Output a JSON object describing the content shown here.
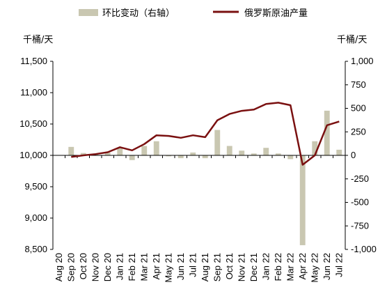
{
  "chart_data": {
    "type": "bar+line",
    "legend": {
      "bar_label": "环比变动（右轴）",
      "line_label": "俄罗斯原油产量",
      "position": "top"
    },
    "y_left": {
      "unit": "千桶/天",
      "range": [
        8500,
        11500
      ],
      "ticks": [
        8500,
        9000,
        9500,
        10000,
        10500,
        11000,
        11500
      ],
      "tick_labels": [
        "8,500",
        "9,000",
        "9,500",
        "10,000",
        "10,500",
        "11,000",
        "11,500"
      ]
    },
    "y_right": {
      "unit": "千桶/天",
      "range": [
        -1000,
        1000
      ],
      "ticks": [
        -1000,
        -750,
        -500,
        -250,
        0,
        250,
        500,
        750,
        1000
      ],
      "tick_labels": [
        "-1,000",
        "-750",
        "-500",
        "-250",
        "0",
        "250",
        "500",
        "750",
        "1,000"
      ]
    },
    "categories": [
      "Aug 20",
      "Sep 20",
      "Oct 20",
      "Nov 20",
      "Dec 20",
      "Jan 21",
      "Feb 21",
      "Mar 21",
      "Apr 21",
      "May 21",
      "Jun 21",
      "Jul 21",
      "Aug 21",
      "Sep 21",
      "Oct 21",
      "Nov 21",
      "Dec 21",
      "Jan 22",
      "Feb 22",
      "Mar 22",
      "Apr 22",
      "May 22",
      "Jun 22",
      "Jul 22"
    ],
    "series": [
      {
        "name": "环比变动（右轴）",
        "type": "bar",
        "axis": "right",
        "color": "#c9c7b1",
        "values": [
          null,
          90,
          25,
          15,
          30,
          80,
          -50,
          100,
          150,
          -10,
          -30,
          30,
          -30,
          270,
          100,
          50,
          20,
          80,
          20,
          -40,
          -955,
          150,
          475,
          60
        ]
      },
      {
        "name": "俄罗斯原油产量",
        "type": "line",
        "axis": "left",
        "color": "#7a1010",
        "values": [
          null,
          9975,
          10000,
          10020,
          10050,
          10130,
          10080,
          10180,
          10320,
          10310,
          10280,
          10320,
          10290,
          10560,
          10660,
          10710,
          10730,
          10820,
          10840,
          10800,
          9850,
          10000,
          10480,
          10540
        ]
      }
    ],
    "grid": false
  }
}
